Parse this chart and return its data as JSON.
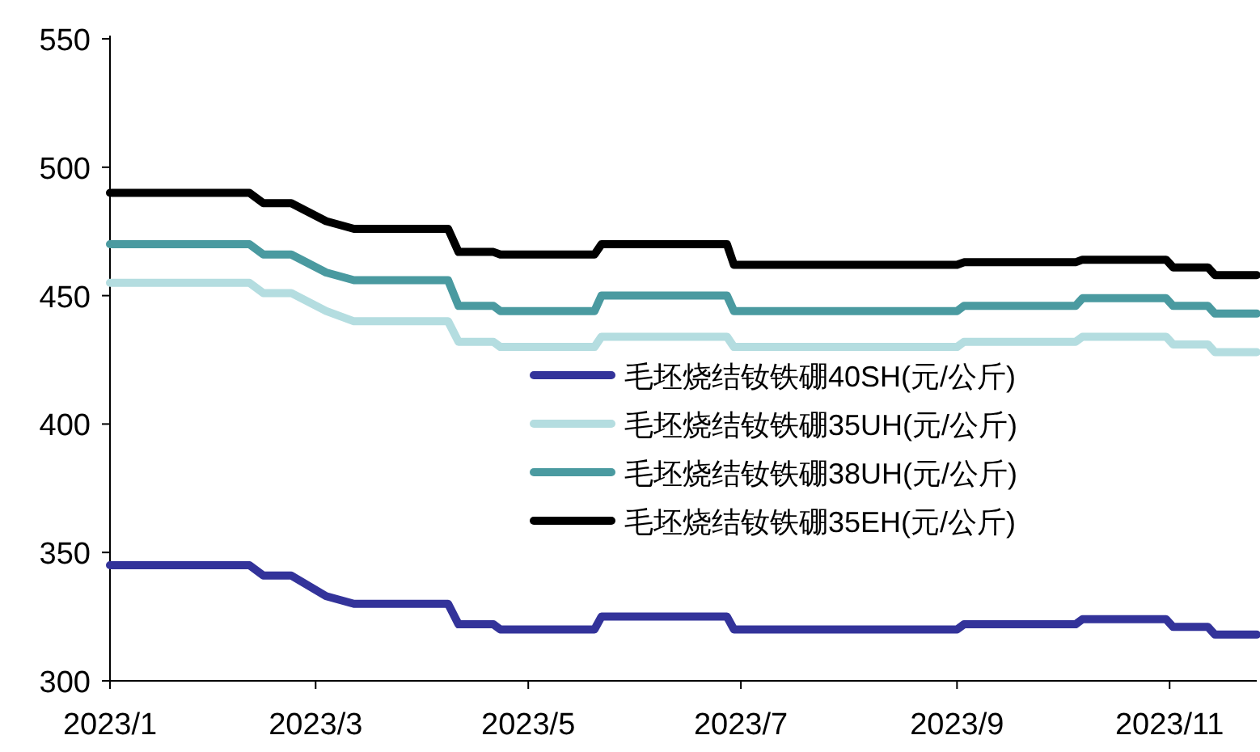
{
  "chart_data": {
    "type": "line",
    "x": [
      "2023-01-01",
      "2023-02-10",
      "2023-02-14",
      "2023-02-22",
      "2023-03-04",
      "2023-03-12",
      "2023-04-08",
      "2023-04-11",
      "2023-04-21",
      "2023-04-23",
      "2023-05-20",
      "2023-05-22",
      "2023-06-27",
      "2023-06-29",
      "2023-09-01",
      "2023-09-03",
      "2023-10-05",
      "2023-10-07",
      "2023-10-31",
      "2023-11-02",
      "2023-11-12",
      "2023-11-14",
      "2023-11-26"
    ],
    "series": [
      {
        "name": "毛坯烧结钕铁硼40SH(元/公斤)",
        "color": "#33339a",
        "values": [
          345,
          345,
          341,
          341,
          333,
          330,
          330,
          322,
          322,
          320,
          320,
          325,
          325,
          320,
          320,
          322,
          322,
          324,
          324,
          321,
          321,
          318,
          318
        ]
      },
      {
        "name": "毛坯烧结钕铁硼35UH(元/公斤)",
        "color": "#b4dde0",
        "values": [
          455,
          455,
          451,
          451,
          444,
          440,
          440,
          432,
          432,
          430,
          430,
          434,
          434,
          430,
          430,
          432,
          432,
          434,
          434,
          431,
          431,
          428,
          428
        ]
      },
      {
        "name": "毛坯烧结钕铁硼38UH(元/公斤)",
        "color": "#4a9aa0",
        "values": [
          470,
          470,
          466,
          466,
          459,
          456,
          456,
          446,
          446,
          444,
          444,
          450,
          450,
          444,
          444,
          446,
          446,
          449,
          449,
          446,
          446,
          443,
          443
        ]
      },
      {
        "name": "毛坯烧结钕铁硼35EH(元/公斤)",
        "color": "#000000",
        "values": [
          490,
          490,
          486,
          486,
          479,
          476,
          476,
          467,
          467,
          466,
          466,
          470,
          470,
          462,
          462,
          463,
          463,
          464,
          464,
          461,
          461,
          458,
          458
        ]
      }
    ],
    "xlim": [
      "2023-01-01",
      "2023-11-26"
    ],
    "xticks": [
      {
        "value": "2023-01-01",
        "label": "2023/1"
      },
      {
        "value": "2023-03-01",
        "label": "2023/3"
      },
      {
        "value": "2023-05-01",
        "label": "2023/5"
      },
      {
        "value": "2023-07-01",
        "label": "2023/7"
      },
      {
        "value": "2023-09-01",
        "label": "2023/9"
      },
      {
        "value": "2023-11-01",
        "label": "2023/11"
      }
    ],
    "ylim": [
      300,
      550
    ],
    "yticks": [
      300,
      350,
      400,
      450,
      500,
      550
    ],
    "legend": "right",
    "line_style": "solid"
  }
}
